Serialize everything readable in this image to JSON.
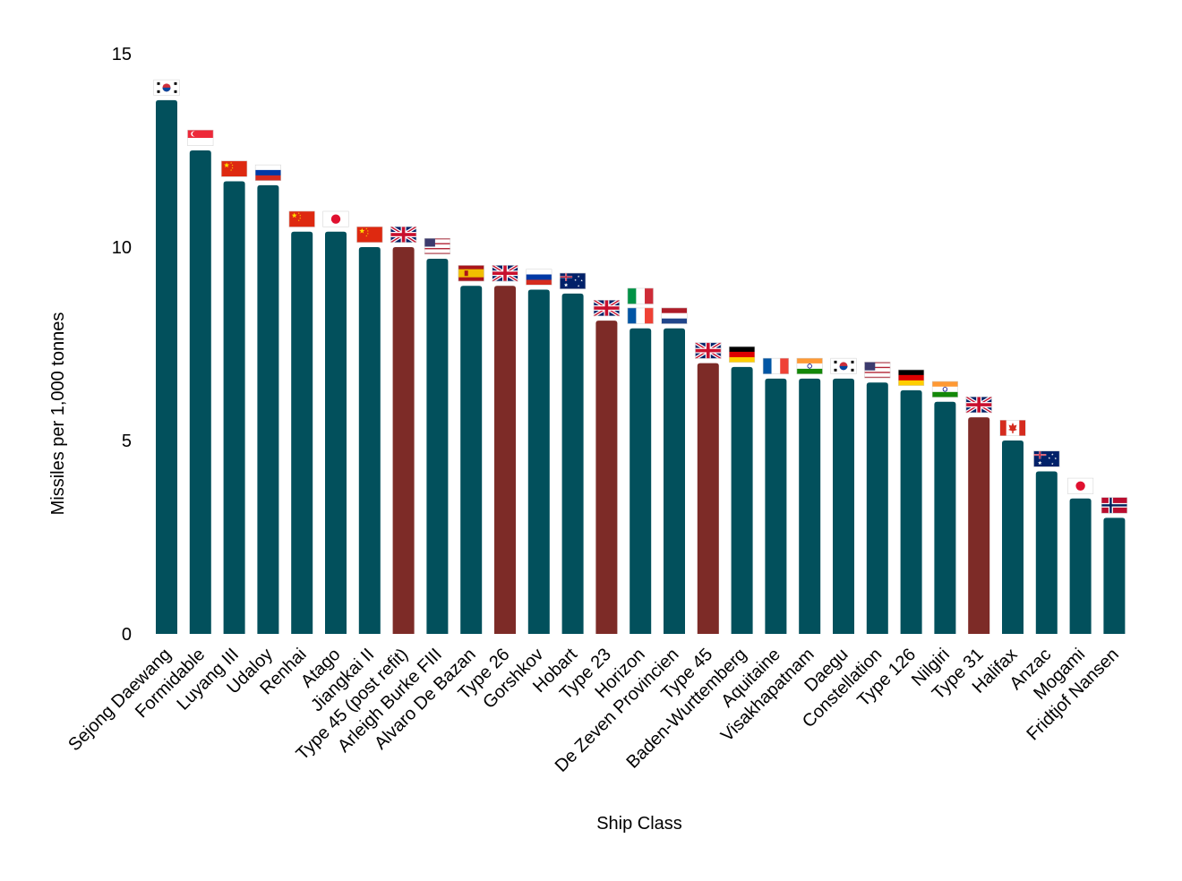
{
  "chart_data": {
    "type": "bar",
    "title": "",
    "xlabel": "Ship Class",
    "ylabel": "Missiles per 1,000 tonnes",
    "ylim": [
      0,
      15
    ],
    "yticks": [
      0,
      5,
      10,
      15
    ],
    "grid": false,
    "legend": "none",
    "colors": {
      "standard": "#02505c",
      "highlight": "#7d2b27"
    },
    "categories": [
      "Sejong Daewang",
      "Formidable",
      "Luyang III",
      "Udaloy",
      "Renhai",
      "Atago",
      "Jiangkai II",
      "Type 45 (post refit)",
      "Arleigh Burke FIII",
      "Alvaro De Bazan",
      "Type 26",
      "Gorshkov",
      "Hobart",
      "Type 23",
      "Horizon",
      "De Zeven Provincien",
      "Type 45",
      "Baden-Wurttemberg",
      "Aquitaine",
      "Visakhapatnam",
      "Daegu",
      "Constellation",
      "Type 126",
      "Nilgiri",
      "Type 31",
      "Halifax",
      "Anzac",
      "Mogami",
      "Fridtjof Nansen"
    ],
    "values": [
      13.8,
      12.5,
      11.7,
      11.6,
      10.4,
      10.4,
      10.0,
      10.0,
      9.7,
      9.0,
      9.0,
      8.9,
      8.8,
      8.1,
      7.9,
      7.9,
      7.0,
      6.9,
      6.6,
      6.6,
      6.6,
      6.5,
      6.3,
      6.0,
      5.6,
      5.0,
      4.2,
      3.5,
      3.0
    ],
    "highlighted": [
      false,
      false,
      false,
      false,
      false,
      false,
      false,
      true,
      false,
      false,
      true,
      false,
      false,
      true,
      false,
      false,
      true,
      false,
      false,
      false,
      false,
      false,
      false,
      false,
      true,
      false,
      false,
      false,
      false
    ],
    "flags": [
      [
        "kr"
      ],
      [
        "sg"
      ],
      [
        "cn"
      ],
      [
        "ru"
      ],
      [
        "cn"
      ],
      [
        "jp"
      ],
      [
        "cn"
      ],
      [
        "gb"
      ],
      [
        "us"
      ],
      [
        "es"
      ],
      [
        "gb"
      ],
      [
        "ru"
      ],
      [
        "au"
      ],
      [
        "gb"
      ],
      [
        "it",
        "fr"
      ],
      [
        "nl"
      ],
      [
        "gb"
      ],
      [
        "de"
      ],
      [
        "fr"
      ],
      [
        "in"
      ],
      [
        "kr"
      ],
      [
        "us"
      ],
      [
        "de"
      ],
      [
        "in"
      ],
      [
        "gb"
      ],
      [
        "ca"
      ],
      [
        "au"
      ],
      [
        "jp"
      ],
      [
        "no"
      ]
    ]
  }
}
